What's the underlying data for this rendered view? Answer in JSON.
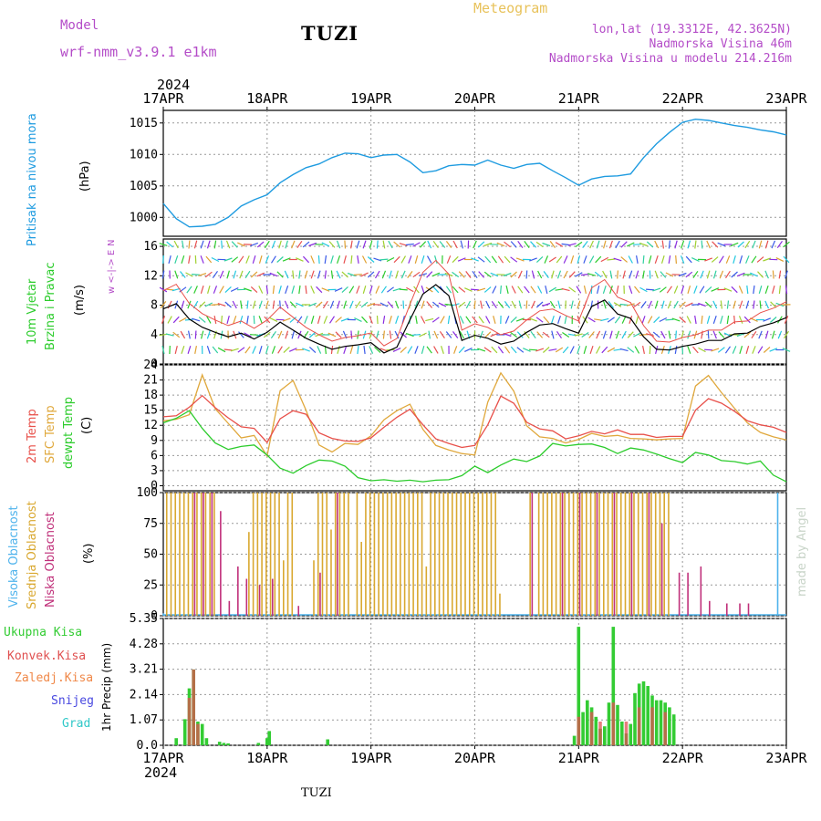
{
  "header": {
    "model_label": "Model",
    "model_name": "wrf-nmm_v3.9.1 e1km",
    "station": "TUZI",
    "meteogram": "Meteogram",
    "lonlat": "lon,lat (19.3312E, 42.3625N)",
    "elevation": "Nadmorska Visina 46m",
    "model_elevation": "Nadmorska Visina u modelu 214.216m",
    "year_top": "2024",
    "year_bottom": "2024",
    "footer_station": "TUZI",
    "watermark": "made by Angel"
  },
  "colors": {
    "pressure": "#1e9be0",
    "temp2m": "#e8504a",
    "sfc": "#e0a83c",
    "dewpt": "#2ccc2c",
    "high_cloud": "#4fb3ec",
    "mid_cloud": "#d9a830",
    "low_cloud": "#c0307a",
    "total_precip": "#33cc33",
    "conv_precip": "#e05050",
    "grid": "#999999"
  },
  "labels": {
    "pressure": [
      "Pritisak na nivou mora",
      "(hPa)"
    ],
    "wind": [
      "10m Vjetar",
      "Brzina i Pravac",
      "(m/s)"
    ],
    "wind_compass": [
      "N",
      "w <-|-> E",
      "S"
    ],
    "temp": [
      "2m Temp",
      "SFC Temp",
      "dewpt Temp",
      "(C)"
    ],
    "cloud": [
      "Visoka Oblacnost",
      "Srednja Oblacnost",
      "Niska Oblacnost",
      "(%)"
    ],
    "precip_legend": [
      "Ukupna Kisa",
      "Konvek.Kisa",
      "Zaledj.Kisa",
      "Snijeg",
      "Grad"
    ],
    "precip_axis": "1hr Precip (mm)"
  },
  "chart_data": [
    {
      "type": "line",
      "title": "",
      "ylabel": "Pritisak na nivou mora (hPa)",
      "x_labels": [
        "17APR",
        "18APR",
        "19APR",
        "20APR",
        "21APR",
        "22APR",
        "23APR"
      ],
      "yticks": [
        1000,
        1005,
        1010,
        1015
      ],
      "ylim": [
        997,
        1017
      ],
      "series": [
        {
          "name": "Pritisak na nivou mora",
          "color": "#1e9be0",
          "x": [
            0,
            3,
            6,
            9,
            12,
            15,
            18,
            21,
            24,
            27,
            30,
            33,
            36,
            39,
            42,
            45,
            48,
            51,
            54,
            57,
            60,
            63,
            66,
            69,
            72,
            75,
            78,
            81,
            84,
            87,
            90,
            93,
            96,
            99,
            102,
            105,
            108,
            111,
            114,
            117,
            120,
            123,
            126,
            129,
            132,
            135,
            138,
            141,
            144
          ],
          "values": [
            1002.2,
            999.8,
            998.5,
            998.6,
            998.9,
            1000.0,
            1001.8,
            1002.8,
            1003.6,
            1005.5,
            1006.8,
            1007.9,
            1008.5,
            1009.5,
            1010.2,
            1010.1,
            1009.5,
            1009.9,
            1010.0,
            1008.8,
            1007.1,
            1007.4,
            1008.2,
            1008.4,
            1008.3,
            1009.1,
            1008.3,
            1007.8,
            1008.4,
            1008.6,
            1007.4,
            1006.3,
            1005.1,
            1006.1,
            1006.5,
            1006.6,
            1006.9,
            1009.5,
            1011.7,
            1013.5,
            1015.1,
            1015.6,
            1015.4,
            1015.0,
            1014.6,
            1014.3,
            1013.9,
            1013.6,
            1013.1
          ]
        }
      ]
    },
    {
      "type": "line",
      "title": "",
      "ylabel": "10m Vjetar Brzina i Pravac (m/s)",
      "yticks": [
        0,
        4,
        8,
        12,
        16
      ],
      "ylim": [
        0,
        17
      ],
      "series": [
        {
          "name": "10m Vjetar",
          "x": [
            0,
            3,
            6,
            9,
            12,
            15,
            18,
            21,
            24,
            27,
            30,
            33,
            36,
            39,
            42,
            45,
            48,
            51,
            54,
            57,
            60,
            63,
            66,
            69,
            72,
            75,
            78,
            81,
            84,
            87,
            90,
            93,
            96,
            99,
            102,
            105,
            108,
            111,
            114,
            117,
            120,
            123,
            126,
            129,
            132,
            135,
            138,
            141,
            144
          ],
          "values": [
            7.5,
            8.2,
            6.1,
            5.0,
            4.3,
            3.7,
            4.2,
            3.4,
            4.3,
            5.7,
            4.6,
            3.5,
            2.7,
            2.0,
            2.4,
            2.6,
            2.9,
            1.5,
            2.3,
            6.0,
            9.5,
            10.8,
            9.3,
            3.2,
            3.9,
            3.5,
            2.7,
            3.1,
            4.3,
            5.3,
            5.5,
            4.8,
            4.2,
            7.8,
            8.7,
            6.8,
            6.2,
            3.7,
            2.0,
            1.9,
            2.4,
            2.7,
            3.2,
            3.2,
            4.1,
            4.2,
            5.1,
            5.6,
            6.3
          ]
        }
      ]
    },
    {
      "type": "line",
      "title": "",
      "ylabel": "(C)",
      "yticks": [
        0,
        3,
        6,
        9,
        12,
        15,
        18,
        21,
        24
      ],
      "ylim": [
        -1,
        24
      ],
      "x": [
        0,
        3,
        6,
        9,
        12,
        15,
        18,
        21,
        24,
        27,
        30,
        33,
        36,
        39,
        42,
        45,
        48,
        51,
        54,
        57,
        60,
        63,
        66,
        69,
        72,
        75,
        78,
        81,
        84,
        87,
        90,
        93,
        96,
        99,
        102,
        105,
        108,
        111,
        114,
        117,
        120,
        123,
        126,
        129,
        132,
        135,
        138,
        141,
        144
      ],
      "series": [
        {
          "name": "2m Temp",
          "color": "#e8504a",
          "values": [
            13.7,
            13.9,
            15.6,
            17.9,
            15.5,
            13.5,
            11.7,
            11.4,
            8.6,
            13.3,
            14.9,
            14.2,
            10.5,
            9.4,
            8.9,
            8.8,
            9.5,
            11.6,
            13.6,
            15.2,
            12.1,
            9.3,
            8.4,
            7.6,
            8.0,
            12.1,
            17.8,
            16.4,
            12.6,
            11.3,
            10.9,
            9.3,
            9.9,
            10.8,
            10.3,
            11.1,
            10.2,
            10.2,
            9.6,
            9.8,
            9.8,
            15.0,
            17.3,
            16.4,
            14.8,
            12.9,
            12.1,
            11.6,
            10.6
          ]
        },
        {
          "name": "SFC Temp",
          "color": "#e0a83c",
          "values": [
            12.9,
            13.2,
            14.1,
            22.0,
            15.3,
            12.4,
            9.5,
            10.0,
            5.9,
            18.9,
            20.9,
            15.0,
            8.1,
            6.7,
            8.4,
            8.2,
            9.9,
            13.1,
            14.9,
            16.2,
            11.2,
            8.0,
            7.1,
            6.4,
            6.1,
            16.6,
            22.4,
            18.8,
            11.9,
            9.7,
            9.4,
            8.5,
            9.2,
            10.4,
            9.8,
            10.0,
            9.4,
            9.3,
            9.1,
            9.3,
            9.4,
            19.8,
            21.9,
            18.5,
            15.4,
            12.5,
            10.6,
            9.7,
            9.1
          ]
        },
        {
          "name": "dewpt Temp",
          "color": "#2ccc2c",
          "values": [
            12.5,
            13.4,
            14.9,
            11.4,
            8.5,
            7.2,
            7.8,
            8.1,
            6.1,
            3.5,
            2.5,
            4.0,
            5.1,
            4.9,
            3.9,
            1.6,
            1.0,
            1.2,
            0.9,
            1.1,
            0.8,
            1.1,
            1.2,
            2.0,
            3.9,
            2.6,
            4.1,
            5.3,
            4.8,
            5.9,
            8.4,
            7.9,
            8.2,
            8.3,
            7.6,
            6.4,
            7.5,
            7.1,
            6.3,
            5.4,
            4.6,
            6.6,
            6.1,
            5.0,
            4.8,
            4.3,
            4.9,
            2.1,
            0.8
          ]
        }
      ]
    },
    {
      "type": "bar",
      "title": "",
      "ylabel": "(%)",
      "yticks": [
        0,
        25,
        50,
        75,
        100
      ],
      "ylim": [
        0,
        100
      ],
      "series": [
        {
          "name": "Srednja Oblacnost",
          "color": "#d9a830",
          "x": [
            1,
            2,
            3,
            4,
            5,
            6,
            7,
            8,
            9,
            10,
            11,
            12,
            20,
            21,
            22,
            23,
            24,
            25,
            26,
            27,
            28,
            29,
            30,
            35,
            36,
            37,
            38,
            39,
            40,
            41,
            42,
            43,
            45,
            46,
            47,
            48,
            49,
            50,
            51,
            52,
            53,
            54,
            55,
            56,
            57,
            58,
            59,
            60,
            61,
            62,
            63,
            64,
            65,
            66,
            67,
            68,
            69,
            70,
            71,
            72,
            73,
            74,
            75,
            76,
            77,
            78,
            85,
            87,
            88,
            89,
            90,
            91,
            92,
            93,
            94,
            95,
            96,
            97,
            98,
            99,
            100,
            101,
            102,
            103,
            104,
            105,
            106,
            107,
            108,
            109,
            110,
            111,
            112,
            113,
            114,
            115,
            116,
            117
          ],
          "values": [
            100,
            100,
            100,
            100,
            100,
            100,
            100,
            100,
            100,
            100,
            100,
            100,
            68,
            100,
            100,
            100,
            100,
            100,
            100,
            100,
            45,
            100,
            100,
            45,
            100,
            100,
            100,
            70,
            100,
            100,
            100,
            100,
            100,
            60,
            100,
            100,
            100,
            100,
            100,
            100,
            100,
            100,
            100,
            100,
            100,
            100,
            100,
            100,
            40,
            100,
            100,
            100,
            100,
            100,
            100,
            100,
            100,
            100,
            100,
            100,
            100,
            100,
            100,
            100,
            100,
            18,
            100,
            100,
            100,
            100,
            100,
            100,
            100,
            100,
            100,
            100,
            100,
            100,
            100,
            100,
            100,
            100,
            100,
            100,
            100,
            100,
            100,
            100,
            100,
            100,
            100,
            100,
            100,
            100,
            100,
            100,
            100,
            100
          ]
        },
        {
          "name": "Niska Oblacnost",
          "color": "#c0307a",
          "x": [
            7,
            9,
            11,
            13,
            15,
            17,
            19,
            22,
            25,
            31,
            36,
            40,
            85,
            92,
            96,
            100,
            104,
            108,
            112,
            115,
            119,
            121,
            124,
            126,
            130,
            133,
            135
          ],
          "values": [
            100,
            100,
            100,
            85,
            12,
            40,
            30,
            25,
            30,
            8,
            35,
            100,
            100,
            100,
            100,
            100,
            100,
            100,
            100,
            75,
            35,
            35,
            40,
            12,
            10,
            10,
            10
          ]
        },
        {
          "name": "Visoka Oblacnost",
          "color": "#4fb3ec",
          "x": [
            0,
            72,
            142
          ],
          "values": [
            2,
            1,
            100
          ]
        }
      ]
    },
    {
      "type": "bar",
      "title": "",
      "ylabel": "1hr Precip (mm)",
      "yticks": [
        0,
        1.07,
        2.14,
        3.21,
        4.28,
        5.35
      ],
      "ylim": [
        0,
        5.35
      ],
      "series": [
        {
          "name": "Ukupna Kisa",
          "color": "#33cc33",
          "x": [
            3,
            5,
            6,
            7,
            8,
            9,
            10,
            13,
            14,
            15,
            22,
            24,
            24.5,
            38,
            95,
            96,
            97,
            98,
            99,
            100,
            101,
            102,
            103,
            104,
            105,
            106,
            107,
            108,
            109,
            110,
            111,
            112,
            113,
            114,
            115,
            116,
            117,
            118
          ],
          "values": [
            0.3,
            1.1,
            2.4,
            3.2,
            1.0,
            0.9,
            0.3,
            0.15,
            0.1,
            0.08,
            0.1,
            0.3,
            0.6,
            0.25,
            0.4,
            5.0,
            1.4,
            1.9,
            1.6,
            1.2,
            0.7,
            0.8,
            1.8,
            5.0,
            1.7,
            1.0,
            0.5,
            0.9,
            2.2,
            2.6,
            2.7,
            2.5,
            2.1,
            1.9,
            1.9,
            1.8,
            1.6,
            1.3
          ]
        },
        {
          "name": "Konvek.Kisa",
          "color": "#e05050",
          "x": [
            6,
            7,
            8,
            96,
            99,
            101,
            104,
            107,
            110,
            113,
            116
          ],
          "values": [
            2.0,
            3.2,
            0.9,
            1.2,
            1.4,
            1.0,
            1.8,
            1.0,
            1.6,
            1.6,
            1.4
          ]
        }
      ]
    }
  ]
}
